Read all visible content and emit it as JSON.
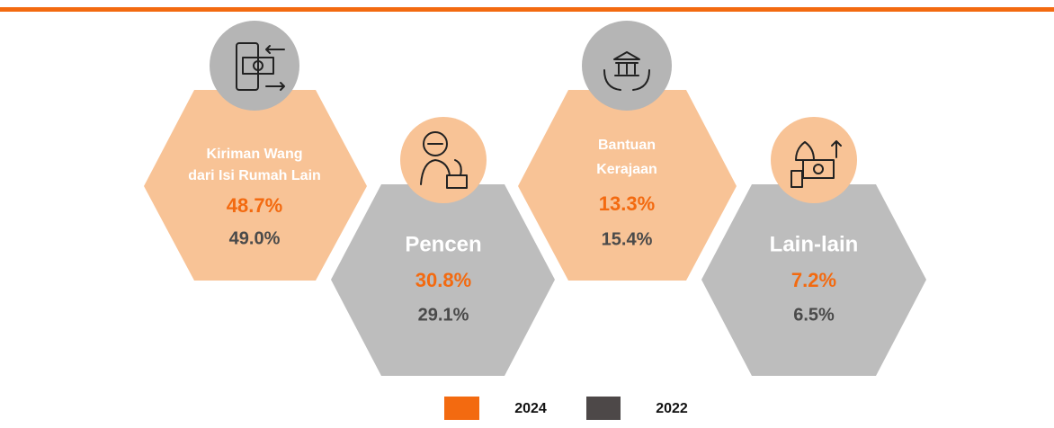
{
  "items": [
    {
      "label": [
        "Kiriman Wang",
        "dari Isi Rumah Lain"
      ],
      "value_2024": "48.7%",
      "value_2022": "49.0%"
    },
    {
      "label": [
        "Pencen"
      ],
      "value_2024": "30.8%",
      "value_2022": "29.1%"
    },
    {
      "label": [
        "Bantuan",
        "Kerajaan"
      ],
      "value_2024": "13.3%",
      "value_2022": "15.4%"
    },
    {
      "label": [
        "Lain-lain"
      ],
      "value_2024": "7.2%",
      "value_2022": "6.5%"
    }
  ],
  "legend": [
    {
      "label": "2024",
      "color": "#f36a10"
    },
    {
      "label": "2022",
      "color": "#4d4848"
    }
  ]
}
